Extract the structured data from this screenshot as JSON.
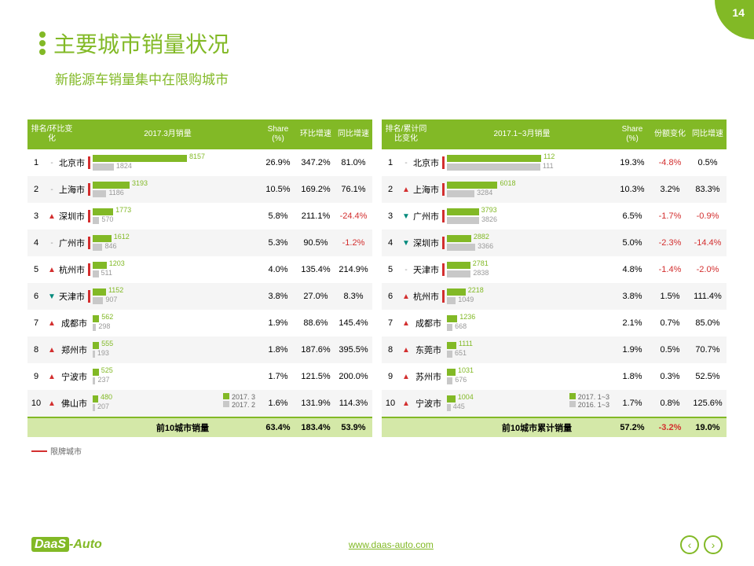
{
  "page_number": "14",
  "title": "主要城市销量状况",
  "subtitle": "新能源车销量集中在限购城市",
  "restricted_legend": "限牌城市",
  "url": "www.daas-auto.com",
  "logo": {
    "brand": "DaaS",
    "suffix": "-Auto"
  },
  "colors": {
    "primary": "#82b926",
    "secondary": "#c8c8c8",
    "negative": "#d32f2f",
    "down": "#00897b"
  },
  "left": {
    "headers": {
      "rank": "排名/环比变化",
      "sales": "2017.3月销量",
      "share": "Share (%)",
      "mom": "环比增速",
      "yoy": "同比增速"
    },
    "legend": [
      "2017. 3",
      "2017. 2"
    ],
    "max": 8157,
    "rows": [
      {
        "rank": "1",
        "arrow": "-",
        "ad": "same",
        "city": "北京市",
        "r": true,
        "v1": 8157,
        "v2": 1824,
        "share": "26.9%",
        "mom": "347.2%",
        "yoy": "81.0%"
      },
      {
        "rank": "2",
        "arrow": "-",
        "ad": "same",
        "city": "上海市",
        "r": true,
        "v1": 3193,
        "v2": 1186,
        "share": "10.5%",
        "mom": "169.2%",
        "yoy": "76.1%"
      },
      {
        "rank": "3",
        "arrow": "▲",
        "ad": "up",
        "city": "深圳市",
        "r": true,
        "v1": 1773,
        "v2": 570,
        "share": "5.8%",
        "mom": "211.1%",
        "yoy": "-24.4%",
        "yneg": true
      },
      {
        "rank": "4",
        "arrow": "-",
        "ad": "same",
        "city": "广州市",
        "r": true,
        "v1": 1612,
        "v2": 846,
        "share": "5.3%",
        "mom": "90.5%",
        "yoy": "-1.2%",
        "yneg": true
      },
      {
        "rank": "5",
        "arrow": "▲",
        "ad": "up",
        "city": "杭州市",
        "r": true,
        "v1": 1203,
        "v2": 511,
        "share": "4.0%",
        "mom": "135.4%",
        "yoy": "214.9%"
      },
      {
        "rank": "6",
        "arrow": "▼",
        "ad": "down",
        "city": "天津市",
        "r": true,
        "v1": 1152,
        "v2": 907,
        "share": "3.8%",
        "mom": "27.0%",
        "yoy": "8.3%"
      },
      {
        "rank": "7",
        "arrow": "▲",
        "ad": "up",
        "city": "成都市",
        "r": false,
        "v1": 562,
        "v2": 298,
        "share": "1.9%",
        "mom": "88.6%",
        "yoy": "145.4%"
      },
      {
        "rank": "8",
        "arrow": "▲",
        "ad": "up",
        "city": "郑州市",
        "r": false,
        "v1": 555,
        "v2": 193,
        "share": "1.8%",
        "mom": "187.6%",
        "yoy": "395.5%"
      },
      {
        "rank": "9",
        "arrow": "▲",
        "ad": "up",
        "city": "宁波市",
        "r": false,
        "v1": 525,
        "v2": 237,
        "share": "1.7%",
        "mom": "121.5%",
        "yoy": "200.0%"
      },
      {
        "rank": "10",
        "arrow": "▲",
        "ad": "up",
        "city": "佛山市",
        "r": false,
        "v1": 480,
        "v2": 207,
        "share": "1.6%",
        "mom": "131.9%",
        "yoy": "114.3%"
      }
    ],
    "footer": {
      "label": "前10城市销量",
      "share": "63.4%",
      "mom": "183.4%",
      "yoy": "53.9%"
    }
  },
  "right": {
    "headers": {
      "rank": "排名/累计同比变化",
      "sales": "2017.1~3月销量",
      "share": "Share (%)",
      "mom": "份额变化",
      "yoy": "同比增速"
    },
    "legend": [
      "2017. 1~3",
      "2016. 1~3"
    ],
    "max": 11200,
    "rows": [
      {
        "rank": "1",
        "arrow": "-",
        "ad": "same",
        "city": "北京市",
        "r": true,
        "v1": 11200,
        "v2": 11100,
        "l1": "112",
        "l2": "111",
        "share": "19.3%",
        "mom": "-4.8%",
        "mneg": true,
        "yoy": "0.5%"
      },
      {
        "rank": "2",
        "arrow": "▲",
        "ad": "up",
        "city": "上海市",
        "r": true,
        "v1": 6018,
        "v2": 3284,
        "share": "10.3%",
        "mom": "3.2%",
        "yoy": "83.3%"
      },
      {
        "rank": "3",
        "arrow": "▼",
        "ad": "down",
        "city": "广州市",
        "r": true,
        "v1": 3793,
        "v2": 3826,
        "share": "6.5%",
        "mom": "-1.7%",
        "mneg": true,
        "yoy": "-0.9%",
        "yneg": true
      },
      {
        "rank": "4",
        "arrow": "▼",
        "ad": "down",
        "city": "深圳市",
        "r": true,
        "v1": 2882,
        "v2": 3366,
        "share": "5.0%",
        "mom": "-2.3%",
        "mneg": true,
        "yoy": "-14.4%",
        "yneg": true
      },
      {
        "rank": "5",
        "arrow": "-",
        "ad": "same",
        "city": "天津市",
        "r": true,
        "v1": 2781,
        "v2": 2838,
        "share": "4.8%",
        "mom": "-1.4%",
        "mneg": true,
        "yoy": "-2.0%",
        "yneg": true
      },
      {
        "rank": "6",
        "arrow": "▲",
        "ad": "up",
        "city": "杭州市",
        "r": true,
        "v1": 2218,
        "v2": 1049,
        "share": "3.8%",
        "mom": "1.5%",
        "yoy": "111.4%"
      },
      {
        "rank": "7",
        "arrow": "▲",
        "ad": "up",
        "city": "成都市",
        "r": false,
        "v1": 1236,
        "v2": 668,
        "share": "2.1%",
        "mom": "0.7%",
        "yoy": "85.0%"
      },
      {
        "rank": "8",
        "arrow": "▲",
        "ad": "up",
        "city": "东莞市",
        "r": false,
        "v1": 1111,
        "v2": 651,
        "share": "1.9%",
        "mom": "0.5%",
        "yoy": "70.7%"
      },
      {
        "rank": "9",
        "arrow": "▲",
        "ad": "up",
        "city": "苏州市",
        "r": false,
        "v1": 1031,
        "v2": 676,
        "share": "1.8%",
        "mom": "0.3%",
        "yoy": "52.5%"
      },
      {
        "rank": "10",
        "arrow": "▲",
        "ad": "up",
        "city": "宁波市",
        "r": false,
        "v1": 1004,
        "v2": 445,
        "share": "1.7%",
        "mom": "0.8%",
        "yoy": "125.6%"
      }
    ],
    "footer": {
      "label": "前10城市累计销量",
      "share": "57.2%",
      "mom": "-3.2%",
      "mneg": true,
      "yoy": "19.0%"
    }
  }
}
